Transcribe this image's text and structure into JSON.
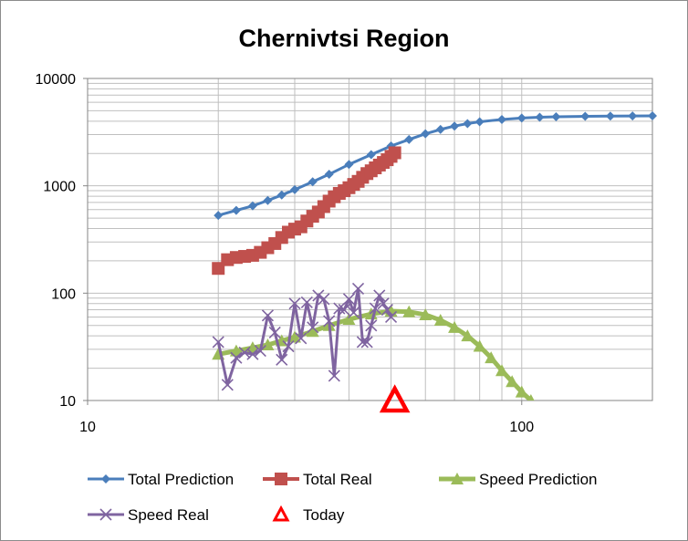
{
  "chart_data": {
    "type": "line",
    "title": "Chernivtsi Region",
    "xlabel": "",
    "ylabel": "",
    "x_scale": "log",
    "y_scale": "log",
    "xlim": [
      10,
      200
    ],
    "ylim": [
      10,
      10000
    ],
    "x_ticks": [
      "10",
      "100"
    ],
    "y_ticks": [
      "10",
      "100",
      "1000",
      "10000"
    ],
    "grid": true,
    "legend_position": "bottom",
    "series": [
      {
        "name": "Total Prediction",
        "color": "#4a7ebb",
        "marker": "diamond",
        "x": [
          20,
          22,
          24,
          26,
          28,
          30,
          33,
          36,
          40,
          45,
          50,
          55,
          60,
          65,
          70,
          75,
          80,
          90,
          100,
          110,
          120,
          140,
          160,
          180,
          200
        ],
        "y": [
          530,
          590,
          650,
          730,
          820,
          920,
          1090,
          1280,
          1580,
          1950,
          2350,
          2700,
          3050,
          3350,
          3600,
          3800,
          3950,
          4150,
          4280,
          4350,
          4400,
          4440,
          4460,
          4470,
          4480
        ]
      },
      {
        "name": "Total Real",
        "color": "#c0504d",
        "marker": "square",
        "x": [
          20,
          21,
          22,
          23,
          24,
          25,
          26,
          27,
          28,
          29,
          30,
          31,
          32,
          33,
          34,
          35,
          36,
          37,
          38,
          39,
          40,
          41,
          42,
          43,
          44,
          45,
          46,
          47,
          48,
          49,
          50,
          51
        ],
        "y": [
          170,
          205,
          215,
          220,
          225,
          240,
          265,
          290,
          330,
          370,
          395,
          415,
          470,
          520,
          570,
          640,
          720,
          790,
          850,
          900,
          960,
          1030,
          1100,
          1200,
          1300,
          1380,
          1470,
          1560,
          1650,
          1750,
          1880,
          2030
        ]
      },
      {
        "name": "Speed Prediction",
        "color": "#9bbb59",
        "marker": "triangle",
        "x": [
          20,
          22,
          24,
          26,
          28,
          30,
          33,
          36,
          40,
          45,
          50,
          55,
          60,
          65,
          70,
          75,
          80,
          85,
          90,
          95,
          100,
          105,
          110
        ],
        "y": [
          27,
          29,
          31,
          33,
          36,
          39,
          44,
          50,
          57,
          64,
          68,
          67,
          63,
          56,
          48,
          40,
          32,
          25,
          19,
          15,
          12,
          10,
          8.5
        ]
      },
      {
        "name": "Speed Real",
        "color": "#7f64a0",
        "marker": "x",
        "x": [
          20,
          21,
          22,
          23,
          24,
          25,
          26,
          27,
          28,
          29,
          30,
          31,
          32,
          33,
          34,
          35,
          36,
          37,
          38,
          39,
          40,
          41,
          42,
          43,
          44,
          45,
          46,
          47,
          48,
          49,
          50
        ],
        "y": [
          35,
          14,
          25,
          28,
          27,
          29,
          62,
          43,
          24,
          32,
          80,
          38,
          82,
          48,
          95,
          88,
          55,
          17,
          72,
          70,
          88,
          66,
          110,
          35,
          35,
          50,
          72,
          95,
          80,
          70,
          60
        ]
      },
      {
        "name": "Today",
        "color": "#ff0000",
        "marker": "open-triangle",
        "x": [
          51
        ],
        "y": [
          10
        ]
      }
    ]
  }
}
